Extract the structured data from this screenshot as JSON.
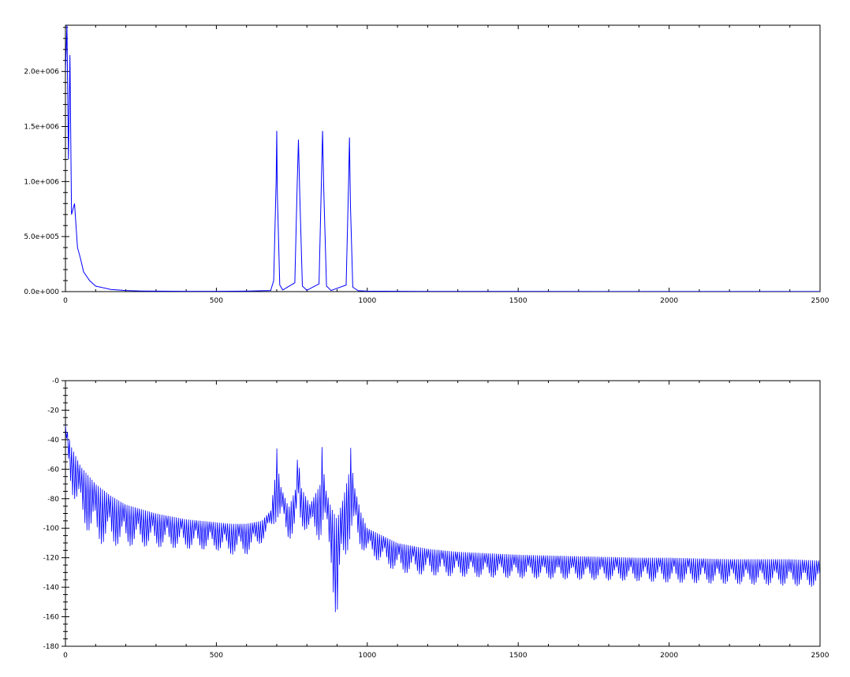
{
  "chart_data": [
    {
      "type": "line",
      "title": "",
      "xlabel": "",
      "ylabel": "",
      "xlim": [
        0,
        2500
      ],
      "ylim": [
        0,
        2420000
      ],
      "x_ticks": [
        0,
        500,
        1000,
        1500,
        2000,
        2500
      ],
      "x_tick_labels": [
        "0",
        "500",
        "1000",
        "1500",
        "2000",
        "2500"
      ],
      "y_ticks": [
        0,
        500000,
        1000000,
        1500000,
        2000000
      ],
      "y_tick_labels": [
        "0.0e+000",
        "5.0e+005",
        "1.0e+006",
        "1.5e+006",
        "2.0e+006"
      ],
      "color": "#0000ff",
      "grid": false,
      "series": [
        {
          "x": [
            0,
            5,
            10,
            15,
            20,
            30,
            40,
            50,
            60,
            80,
            100,
            150,
            200,
            250,
            300,
            400,
            500,
            600,
            680,
            690,
            698,
            700,
            702,
            710,
            720,
            760,
            768,
            772,
            776,
            785,
            800,
            840,
            848,
            852,
            856,
            865,
            880,
            930,
            938,
            941,
            944,
            952,
            970,
            1000,
            1200,
            1500,
            2000,
            2500
          ],
          "y": [
            2000000,
            2420000,
            1200000,
            2150000,
            700000,
            800000,
            400000,
            300000,
            180000,
            100000,
            50000,
            20000,
            10000,
            6000,
            4000,
            3000,
            3000,
            4000,
            10000,
            100000,
            1000000,
            1460000,
            900000,
            60000,
            15000,
            80000,
            1000000,
            1380000,
            900000,
            50000,
            12000,
            70000,
            1000000,
            1460000,
            900000,
            50000,
            10000,
            60000,
            1000000,
            1400000,
            800000,
            40000,
            8000,
            4000,
            2000,
            1500,
            1000,
            800
          ]
        }
      ]
    },
    {
      "type": "line",
      "title": "",
      "xlabel": "",
      "ylabel": "",
      "xlim": [
        0,
        2500
      ],
      "ylim": [
        -180,
        0
      ],
      "x_ticks": [
        0,
        500,
        1000,
        1500,
        2000,
        2500
      ],
      "x_tick_labels": [
        "0",
        "500",
        "1000",
        "1500",
        "2000",
        "2500"
      ],
      "y_ticks": [
        0,
        -20,
        -40,
        -60,
        -80,
        -100,
        -120,
        -140,
        -160,
        -180
      ],
      "y_tick_labels": [
        "-0",
        "-20",
        "-40",
        "-60",
        "-80",
        "-100",
        "-120",
        "-140",
        "-160",
        "-180"
      ],
      "color": "#0000ff",
      "grid": false,
      "series": [
        {
          "name": "",
          "upper_envelope": {
            "x": [
              0,
              20,
              50,
              100,
              150,
              200,
              300,
              400,
              500,
              550,
              600,
              650,
              680,
              695,
              700,
              710,
              740,
              765,
              770,
              780,
              810,
              845,
              850,
              860,
              880,
              900,
              920,
              940,
              945,
              955,
              980,
              1000,
              1100,
              1200,
              1300,
              1500,
              1700,
              1900,
              2000,
              2200,
              2400,
              2500
            ],
            "y": [
              -30,
              -45,
              -58,
              -70,
              -78,
              -84,
              -90,
              -94,
              -96,
              -97,
              -97,
              -95,
              -88,
              -65,
              -45,
              -70,
              -86,
              -72,
              -45,
              -72,
              -84,
              -70,
              -45,
              -72,
              -86,
              -94,
              -80,
              -62,
              -45,
              -70,
              -90,
              -100,
              -110,
              -114,
              -116,
              -118,
              -119,
              -120,
              -120,
              -121,
              -121,
              -122
            ]
          },
          "lower_envelope": {
            "x": [
              0,
              20,
              50,
              100,
              150,
              200,
              300,
              400,
              500,
              550,
              600,
              650,
              680,
              700,
              720,
              740,
              760,
              780,
              800,
              840,
              860,
              880,
              900,
              920,
              940,
              960,
              1000,
              1100,
              1200,
              1300,
              1500,
              1700,
              1900,
              2000,
              2200,
              2400,
              2500
            ],
            "y": [
              -40,
              -75,
              -95,
              -110,
              -112,
              -112,
              -113,
              -114,
              -115,
              -118,
              -118,
              -110,
              -102,
              -95,
              -100,
              -108,
              -104,
              -100,
              -102,
              -108,
              -106,
              -125,
              -175,
              -130,
              -110,
              -110,
              -118,
              -130,
              -132,
              -133,
              -134,
              -135,
              -136,
              -137,
              -138,
              -139,
              -140
            ]
          }
        }
      ]
    }
  ]
}
